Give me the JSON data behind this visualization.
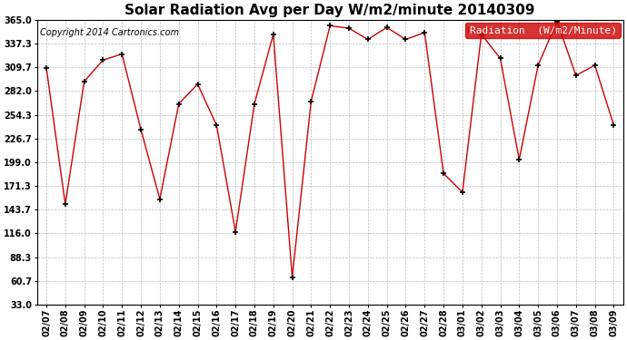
{
  "title": "Solar Radiation Avg per Day W/m2/minute 20140309",
  "copyright": "Copyright 2014 Cartronics.com",
  "legend_label": "Radiation  (W/m2/Minute)",
  "background_color": "#ffffff",
  "line_color": "#cc0000",
  "marker_color": "#000000",
  "grid_color": "#bbbbbb",
  "dates": [
    "02/07",
    "02/08",
    "02/09",
    "02/10",
    "02/11",
    "02/12",
    "02/13",
    "02/14",
    "02/15",
    "02/16",
    "02/17",
    "02/18",
    "02/19",
    "02/20",
    "02/21",
    "02/22",
    "02/23",
    "02/24",
    "02/25",
    "02/26",
    "02/27",
    "02/28",
    "03/01",
    "03/02",
    "03/03",
    "03/04",
    "03/05",
    "03/06",
    "03/07",
    "03/08",
    "03/09"
  ],
  "values": [
    309.0,
    150.0,
    293.0,
    318.0,
    325.0,
    237.0,
    156.0,
    267.0,
    290.0,
    242.0,
    118.0,
    267.0,
    348.0,
    65.0,
    270.0,
    358.0,
    355.0,
    342.0,
    356.0,
    342.0,
    350.0,
    186.0,
    164.0,
    348.0,
    320.0,
    202.0,
    312.0,
    363.0,
    300.0,
    312.0,
    242.0
  ],
  "yticks": [
    33.0,
    60.7,
    88.3,
    116.0,
    143.7,
    171.3,
    199.0,
    226.7,
    254.3,
    282.0,
    309.7,
    337.3,
    365.0
  ],
  "ylim": [
    33.0,
    365.0
  ],
  "title_fontsize": 11,
  "copyright_fontsize": 7,
  "tick_fontsize": 7,
  "legend_fontsize": 8
}
